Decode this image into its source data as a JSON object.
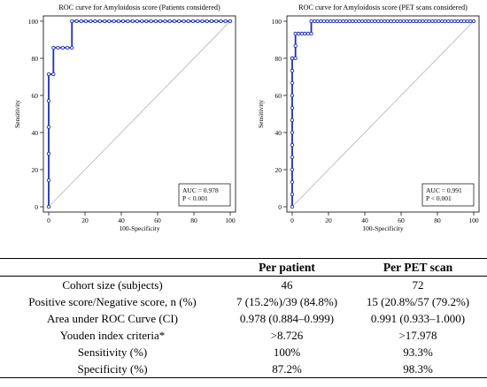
{
  "colors": {
    "curve": "#1c2fb5",
    "reference": "#b4b4b4",
    "axis": "#000000"
  },
  "chart_data": [
    {
      "type": "line",
      "title": "ROC curve for Amyloidosis score (Patients considered)",
      "xlabel": "100-Specificity",
      "ylabel": "Sensitivity",
      "xlim": [
        0,
        100
      ],
      "ylim": [
        0,
        100
      ],
      "xticks": [
        "0",
        "20",
        "40",
        "60",
        "80",
        "100"
      ],
      "yticks": [
        "0",
        "20",
        "40",
        "60",
        "80",
        "100"
      ],
      "grid": false,
      "reference_line": [
        [
          0,
          0
        ],
        [
          100,
          100
        ]
      ],
      "annotation": [
        "AUC = 0.978",
        "P < 0.001"
      ],
      "series": [
        {
          "x": [
            0,
            0,
            0,
            0,
            0,
            0,
            2.6,
            2.6,
            5.1,
            7.7,
            10.3,
            12.8,
            12.8,
            15.4,
            17.9,
            20.5,
            23.1,
            25.6,
            28.2,
            30.8,
            33.3,
            35.9,
            38.5,
            41.0,
            43.6,
            46.2,
            48.7,
            51.3,
            53.8,
            56.4,
            59.0,
            61.5,
            64.1,
            66.7,
            69.2,
            71.8,
            74.4,
            76.9,
            79.5,
            82.1,
            84.6,
            87.2,
            89.7,
            92.3,
            94.9,
            97.4,
            100
          ],
          "y": [
            0,
            14.3,
            28.6,
            42.9,
            57.1,
            71.4,
            71.4,
            85.7,
            85.7,
            85.7,
            85.7,
            85.7,
            100,
            100,
            100,
            100,
            100,
            100,
            100,
            100,
            100,
            100,
            100,
            100,
            100,
            100,
            100,
            100,
            100,
            100,
            100,
            100,
            100,
            100,
            100,
            100,
            100,
            100,
            100,
            100,
            100,
            100,
            100,
            100,
            100,
            100,
            100
          ]
        }
      ]
    },
    {
      "type": "line",
      "title": "ROC curve for Amyloidosis score (PET scans considered)",
      "xlabel": "100-Specificity",
      "ylabel": "Sensitivity",
      "xlim": [
        0,
        100
      ],
      "ylim": [
        0,
        100
      ],
      "xticks": [
        "0",
        "20",
        "40",
        "60",
        "80",
        "100"
      ],
      "yticks": [
        "0",
        "20",
        "40",
        "60",
        "80",
        "100"
      ],
      "grid": false,
      "reference_line": [
        [
          0,
          0
        ],
        [
          100,
          100
        ]
      ],
      "annotation": [
        "AUC = 0.991",
        "P < 0.001"
      ],
      "series": [
        {
          "x": [
            0,
            0,
            0,
            0,
            0,
            0,
            0,
            0,
            0,
            0,
            0,
            0,
            0,
            0,
            0,
            0,
            1.8,
            1.8,
            1.8,
            3.5,
            3.5,
            5.3,
            7.0,
            8.8,
            10.5,
            10.5,
            12.3,
            14.0,
            15.8,
            17.5,
            19.3,
            21.1,
            22.8,
            24.6,
            26.3,
            28.1,
            29.8,
            31.6,
            33.3,
            35.1,
            36.8,
            38.6,
            40.4,
            42.1,
            43.9,
            45.6,
            47.4,
            49.1,
            50.9,
            52.6,
            54.4,
            56.1,
            57.9,
            59.6,
            61.4,
            63.2,
            64.9,
            66.7,
            68.4,
            70.2,
            71.9,
            73.7,
            75.4,
            77.2,
            78.9,
            80.7,
            82.5,
            84.2,
            86.0,
            87.7,
            89.5,
            91.2,
            93.0,
            94.7,
            96.5,
            98.2,
            100
          ],
          "y": [
            0,
            6.7,
            13.3,
            20.0,
            26.7,
            33.3,
            40.0,
            46.7,
            53.3,
            60.0,
            66.7,
            73.3,
            80.0,
            80.0,
            80.0,
            80.0,
            80.0,
            86.7,
            93.3,
            93.3,
            93.3,
            93.3,
            93.3,
            93.3,
            93.3,
            100,
            100,
            100,
            100,
            100,
            100,
            100,
            100,
            100,
            100,
            100,
            100,
            100,
            100,
            100,
            100,
            100,
            100,
            100,
            100,
            100,
            100,
            100,
            100,
            100,
            100,
            100,
            100,
            100,
            100,
            100,
            100,
            100,
            100,
            100,
            100,
            100,
            100,
            100,
            100,
            100,
            100,
            100,
            100,
            100,
            100,
            100,
            100,
            100,
            100,
            100,
            100
          ]
        }
      ]
    }
  ],
  "table": {
    "headers": [
      "",
      "Per patient",
      "Per PET scan"
    ],
    "rows": [
      [
        "Cohort size (subjects)",
        "46",
        "72"
      ],
      [
        "Positive score/Negative score, n (%)",
        "7 (15.2%)/39 (84.8%)",
        "15 (20.8%/57 (79.2%)"
      ],
      [
        "Area under ROC Curve (CI)",
        "0.978 (0.884–0.999)",
        "0.991 (0.933–1.000)"
      ],
      [
        "Youden index criteria*",
        ">8.726",
        ">17.978"
      ],
      [
        "Sensitivity (%)",
        "100%",
        "93.3%"
      ],
      [
        "Specificity (%)",
        "87.2%",
        "98.3%"
      ]
    ]
  }
}
